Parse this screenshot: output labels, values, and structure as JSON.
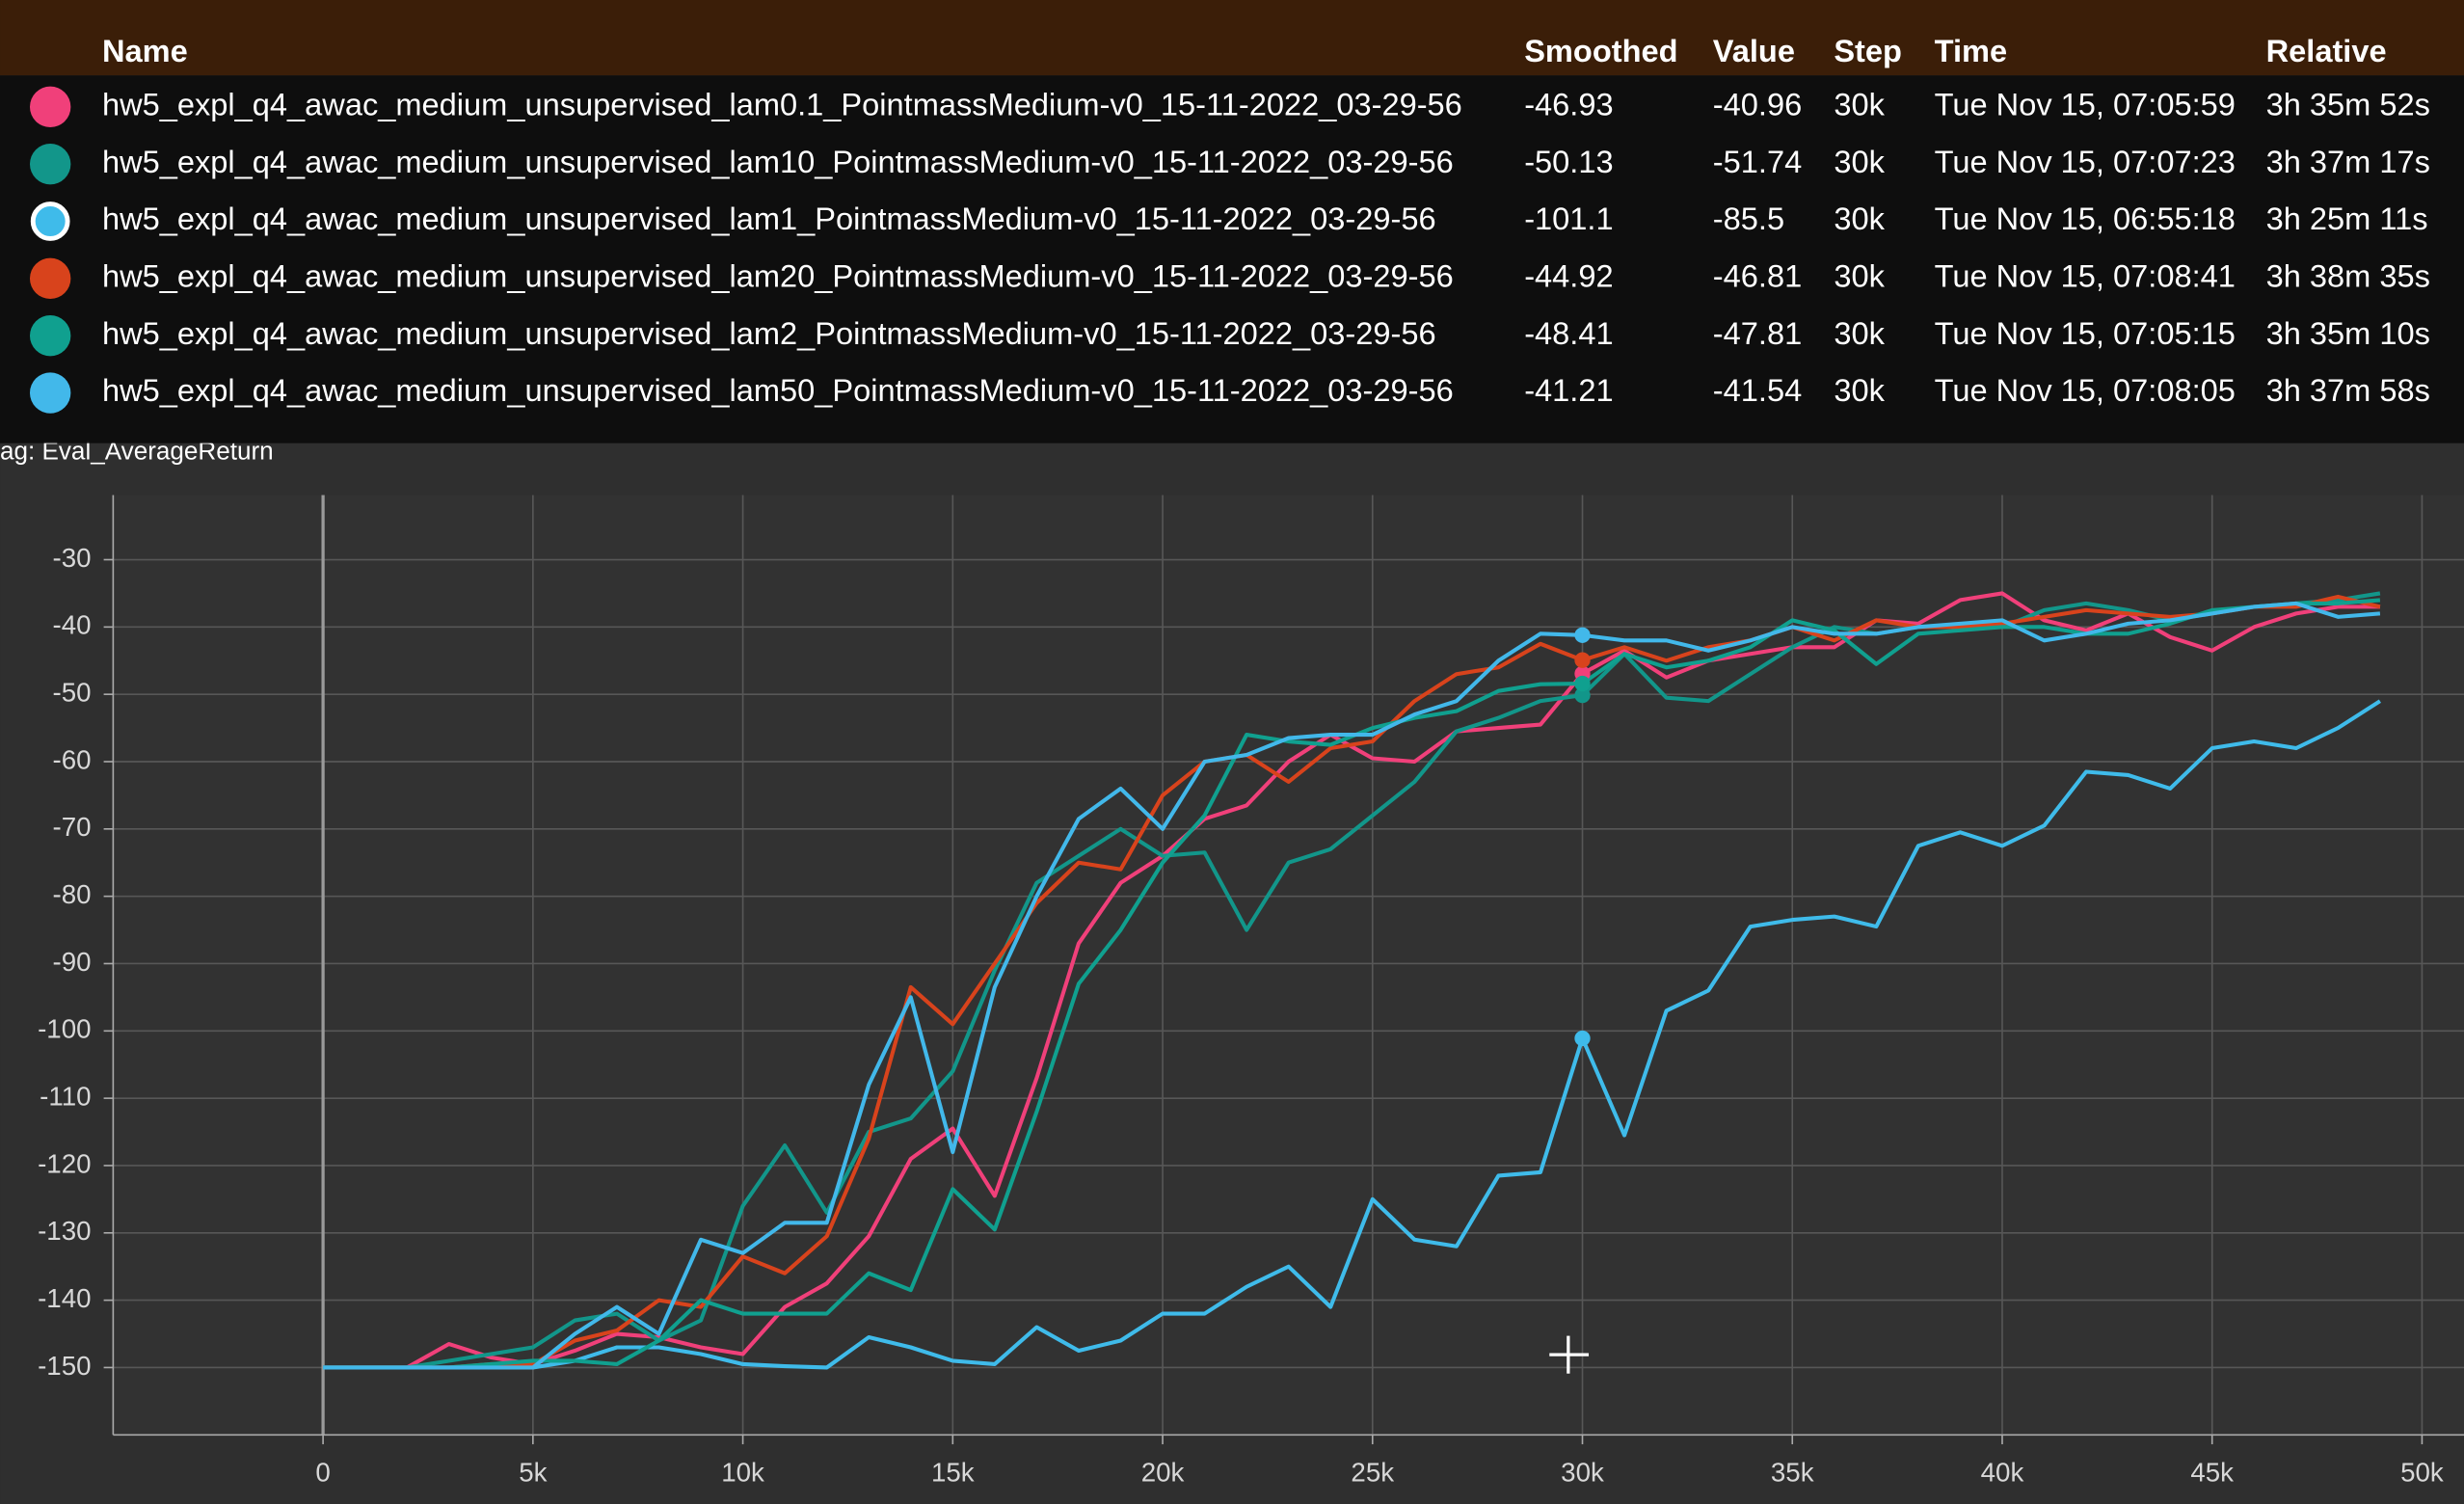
{
  "chart_data": {
    "type": "line",
    "tag_label": "ag: Eval_AverageReturn",
    "x": [
      0,
      1000,
      2000,
      3000,
      4000,
      5000,
      6000,
      7000,
      8000,
      9000,
      10000,
      11000,
      12000,
      13000,
      14000,
      15000,
      16000,
      17000,
      18000,
      19000,
      20000,
      21000,
      22000,
      23000,
      24000,
      25000,
      26000,
      27000,
      28000,
      29000,
      30000,
      31000,
      32000,
      33000,
      34000,
      35000,
      36000,
      37000,
      38000,
      39000,
      40000,
      41000,
      42000,
      43000,
      44000,
      45000,
      46000,
      47000,
      48000,
      49000
    ],
    "series": [
      {
        "name": "hw5_expl_q4_awac_medium_unsupervised_lam0.1_PointmassMedium-v0_15-11-2022_03-29-56",
        "color": "#f0407a",
        "values": [
          -150,
          -150,
          -150,
          -146.5,
          -148.5,
          -149.5,
          -147.5,
          -145,
          -145.5,
          -147,
          -148,
          -141,
          -137.5,
          -130.5,
          -119,
          -114.5,
          -124.5,
          -107,
          -87,
          -78,
          -74,
          -68.5,
          -66.5,
          -60,
          -56,
          -59.5,
          -60,
          -55.5,
          -55,
          -54.5,
          -46.93,
          -43.5,
          -47.5,
          -45,
          -44,
          -43,
          -43,
          -39,
          -39.5,
          -36,
          -35,
          -39,
          -40.5,
          -38,
          -41.5,
          -43.5,
          -40,
          -38,
          -37,
          -37
        ]
      },
      {
        "name": "hw5_expl_q4_awac_medium_unsupervised_lam10_PointmassMedium-v0_15-11-2022_03-29-56",
        "color": "#12968a",
        "values": [
          -150,
          -150,
          -150,
          -149,
          -148,
          -147,
          -143,
          -142,
          -146,
          -143,
          -126,
          -117,
          -127,
          -115,
          -113,
          -106,
          -91,
          -78,
          -74,
          -70,
          -74,
          -73.5,
          -85,
          -75,
          -73,
          -68,
          -63,
          -55.5,
          -53.5,
          -51,
          -50.13,
          -44,
          -50.5,
          -51,
          -47,
          -43,
          -40,
          -41,
          -40,
          -40,
          -40,
          -37.5,
          -36.5,
          -37.5,
          -39,
          -38,
          -37,
          -36.5,
          -36,
          -35
        ]
      },
      {
        "name": "hw5_expl_q4_awac_medium_unsupervised_lam1_PointmassMedium-v0_15-11-2022_03-29-56",
        "color": "#3fbbea",
        "values": [
          -150,
          -150,
          -150,
          -150,
          -150,
          -150,
          -149,
          -147,
          -147,
          -148,
          -149.5,
          -149.8,
          -150,
          -145.5,
          -147,
          -149,
          -149.5,
          -144,
          -147.5,
          -146,
          -142,
          -142,
          -138,
          -135,
          -141,
          -125,
          -131,
          -132,
          -121.5,
          -121,
          -101.1,
          -115.5,
          -97,
          -94,
          -84.5,
          -83.5,
          -83,
          -84.5,
          -72.5,
          -70.5,
          -72.5,
          -69.5,
          -61.5,
          -62,
          -64,
          -58,
          -57,
          -58,
          -55,
          -51
        ]
      },
      {
        "name": "hw5_expl_q4_awac_medium_unsupervised_lam20_PointmassMedium-v0_15-11-2022_03-29-56",
        "color": "#d8431c",
        "values": [
          -150,
          -150,
          -150,
          -150,
          -149.5,
          -149.5,
          -146,
          -144.5,
          -140,
          -141,
          -133.5,
          -136,
          -130.5,
          -116,
          -93.5,
          -99,
          -90,
          -81,
          -75,
          -76,
          -65,
          -60,
          -59,
          -63,
          -58,
          -57,
          -51,
          -47,
          -46,
          -42.5,
          -44.92,
          -43,
          -45,
          -43,
          -42,
          -40,
          -42,
          -39,
          -40,
          -40,
          -39.5,
          -38.5,
          -37.5,
          -38,
          -38.5,
          -38,
          -37,
          -37,
          -35.5,
          -37
        ]
      },
      {
        "name": "hw5_expl_q4_awac_medium_unsupervised_lam2_PointmassMedium-v0_15-11-2022_03-29-56",
        "color": "#10a08f",
        "values": [
          -150,
          -150,
          -150,
          -150,
          -149.5,
          -149,
          -149,
          -149.5,
          -146,
          -140,
          -142,
          -142,
          -142,
          -136,
          -138.5,
          -123.5,
          -129.5,
          -112,
          -93,
          -85,
          -75,
          -68,
          -56,
          -57,
          -57.5,
          -55,
          -53.5,
          -52.5,
          -49.5,
          -48.5,
          -48.41,
          -44,
          -46,
          -45,
          -43,
          -39,
          -40.5,
          -45.5,
          -41,
          -40.5,
          -40,
          -40,
          -41,
          -41,
          -39.5,
          -37.5,
          -37,
          -36.5,
          -36.5,
          -36
        ]
      },
      {
        "name": "hw5_expl_q4_awac_medium_unsupervised_lam50_PointmassMedium-v0_15-11-2022_03-29-56",
        "color": "#42b8ea",
        "values": [
          -150,
          -150,
          -150,
          -150,
          -150,
          -150,
          -145,
          -141,
          -145,
          -131,
          -133,
          -128.5,
          -128.5,
          -108,
          -95,
          -118,
          -93.5,
          -80,
          -68.5,
          -64,
          -70,
          -60,
          -59,
          -56.5,
          -56,
          -56,
          -53,
          -51,
          -45,
          -41,
          -41.21,
          -42,
          -42,
          -43.5,
          -42,
          -40,
          -41,
          -41,
          -40,
          -39.5,
          -39,
          -42,
          -41,
          -39.5,
          -39,
          -38,
          -37,
          -36.5,
          -38.5,
          -38
        ]
      }
    ],
    "xlim": [
      -5000,
      51000
    ],
    "ylim": [
      -160,
      -20.4
    ],
    "xticks": [
      0,
      {
        "value": 5000,
        "label": "5k"
      },
      {
        "value": 10000,
        "label": "10k"
      },
      {
        "value": 15000,
        "label": "15k"
      },
      {
        "value": 20000,
        "label": "20k"
      },
      {
        "value": 25000,
        "label": "25k"
      },
      {
        "value": 30000,
        "label": "30k"
      },
      {
        "value": 35000,
        "label": "35k"
      },
      {
        "value": 40000,
        "label": "40k"
      },
      {
        "value": 45000,
        "label": "45k"
      },
      {
        "value": 50000,
        "label": "50k"
      }
    ],
    "yticks": [
      -30,
      -40,
      -50,
      -60,
      -70,
      -80,
      -90,
      -100,
      -110,
      -120,
      -130,
      -140,
      -150
    ],
    "grid": true
  },
  "tooltip": {
    "headers": [
      "Name",
      "Smoothed",
      "Value",
      "Step",
      "Time",
      "Relative"
    ],
    "rows": [
      [
        "-46.93",
        "-40.96",
        {
          "value": 30000,
          "label": "30k"
        },
        "Tue Nov 15, 07:05:59",
        "3h 35m 52s"
      ],
      [
        "-50.13",
        "-51.74",
        {
          "value": 30000,
          "label": "30k"
        },
        "Tue Nov 15, 07:07:23",
        "3h 37m 17s"
      ],
      [
        "-101.1",
        "-85.5",
        {
          "value": 30000,
          "label": "30k"
        },
        "Tue Nov 15, 06:55:18",
        "3h 25m 11s"
      ],
      [
        "-44.92",
        "-46.81",
        {
          "value": 30000,
          "label": "30k"
        },
        "Tue Nov 15, 07:08:41",
        "3h 38m 35s"
      ],
      [
        "-48.41",
        "-47.81",
        {
          "value": 30000,
          "label": "30k"
        },
        "Tue Nov 15, 07:05:15",
        "3h 35m 10s"
      ],
      [
        "-41.21",
        "-41.54",
        {
          "value": 30000,
          "label": "30k"
        },
        "Tue Nov 15, 07:08:05",
        "3h 37m 58s"
      ]
    ]
  }
}
